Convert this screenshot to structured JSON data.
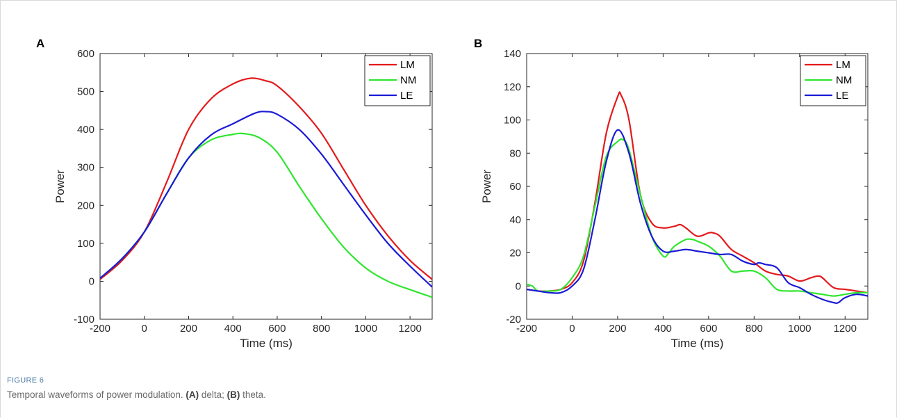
{
  "figure": {
    "label": "FIGURE 6",
    "caption_intro": "Temporal waveforms of power modulation. ",
    "caption_a_tag": "(A)",
    "caption_a_text": " delta; ",
    "caption_b_tag": "(B)",
    "caption_b_text": " theta."
  },
  "chart_data": [
    {
      "type": "line",
      "panel": "A",
      "xlabel": "Time (ms)",
      "ylabel": "Power",
      "xlim": [
        -200,
        1300
      ],
      "ylim": [
        -100,
        600
      ],
      "xticks": [
        -200,
        0,
        200,
        400,
        600,
        800,
        1000,
        1200
      ],
      "yticks": [
        -100,
        0,
        100,
        200,
        300,
        400,
        500,
        600
      ],
      "legend_position": "top-right",
      "series": [
        {
          "name": "LM",
          "color": "#e41a1c",
          "x": [
            -200,
            -100,
            0,
            100,
            200,
            300,
            400,
            480,
            550,
            600,
            700,
            800,
            900,
            1000,
            1100,
            1200,
            1300
          ],
          "y": [
            5,
            55,
            130,
            260,
            400,
            480,
            520,
            535,
            528,
            515,
            460,
            390,
            295,
            200,
            120,
            55,
            5
          ]
        },
        {
          "name": "NM",
          "color": "#2ee62e",
          "x": [
            -200,
            -100,
            0,
            100,
            200,
            300,
            400,
            450,
            520,
            600,
            700,
            800,
            900,
            1000,
            1100,
            1200,
            1300
          ],
          "y": [
            8,
            60,
            130,
            230,
            325,
            372,
            387,
            389,
            378,
            340,
            250,
            165,
            90,
            35,
            0,
            -22,
            -42
          ]
        },
        {
          "name": "LE",
          "color": "#1a1ad6",
          "x": [
            -200,
            -100,
            0,
            100,
            200,
            300,
            400,
            500,
            550,
            600,
            700,
            800,
            900,
            1000,
            1100,
            1200,
            1300
          ],
          "y": [
            8,
            60,
            130,
            230,
            325,
            385,
            415,
            443,
            447,
            440,
            400,
            335,
            255,
            175,
            100,
            40,
            -15
          ]
        }
      ]
    },
    {
      "type": "line",
      "panel": "B",
      "xlabel": "Time (ms)",
      "ylabel": "Power",
      "xlim": [
        -200,
        1300
      ],
      "ylim": [
        -20,
        140
      ],
      "xticks": [
        -200,
        0,
        200,
        400,
        600,
        800,
        1000,
        1200
      ],
      "yticks": [
        -20,
        0,
        20,
        40,
        60,
        80,
        100,
        120,
        140
      ],
      "legend_position": "top-right",
      "series": [
        {
          "name": "LM",
          "color": "#e41a1c",
          "x": [
            -200,
            -150,
            -100,
            -50,
            0,
            50,
            100,
            150,
            200,
            215,
            250,
            300,
            350,
            400,
            450,
            475,
            500,
            550,
            600,
            620,
            650,
            700,
            750,
            800,
            850,
            900,
            950,
            1000,
            1050,
            1080,
            1100,
            1150,
            1200,
            1250,
            1300
          ],
          "y": [
            -2,
            -3,
            -3,
            -2,
            2,
            15,
            50,
            92,
            114,
            115,
            100,
            55,
            38,
            35,
            36,
            37,
            35,
            30,
            32,
            32,
            30,
            22,
            18,
            14,
            9,
            7,
            6,
            3,
            5,
            6,
            5,
            -1,
            -2,
            -3,
            -4
          ]
        },
        {
          "name": "NM",
          "color": "#2ee62e",
          "x": [
            -200,
            -175,
            -150,
            -100,
            -50,
            0,
            50,
            100,
            150,
            200,
            225,
            250,
            300,
            350,
            400,
            425,
            450,
            500,
            530,
            550,
            600,
            650,
            700,
            750,
            800,
            850,
            900,
            950,
            1000,
            1050,
            1100,
            1150,
            1200,
            1250,
            1300
          ],
          "y": [
            1,
            0,
            -3,
            -3,
            -2,
            5,
            18,
            48,
            78,
            87,
            88,
            82,
            55,
            30,
            18,
            20,
            24,
            28,
            28,
            27,
            24,
            18,
            9,
            9,
            9,
            5,
            -2,
            -3,
            -3,
            -4,
            -5,
            -6,
            -5,
            -4,
            -4
          ]
        },
        {
          "name": "LE",
          "color": "#1a1ad6",
          "x": [
            -200,
            -150,
            -100,
            -50,
            0,
            50,
            100,
            150,
            200,
            250,
            300,
            350,
            400,
            450,
            500,
            550,
            600,
            650,
            700,
            750,
            800,
            820,
            850,
            900,
            950,
            1000,
            1050,
            1100,
            1150,
            1170,
            1200,
            1250,
            1300
          ],
          "y": [
            -2,
            -3,
            -4,
            -4,
            0,
            10,
            40,
            75,
            94,
            80,
            50,
            30,
            21,
            21,
            22,
            21,
            20,
            19,
            19,
            15,
            13,
            14,
            13,
            11,
            2,
            -1,
            -5,
            -8,
            -10,
            -10,
            -7,
            -5,
            -6
          ]
        }
      ]
    }
  ]
}
